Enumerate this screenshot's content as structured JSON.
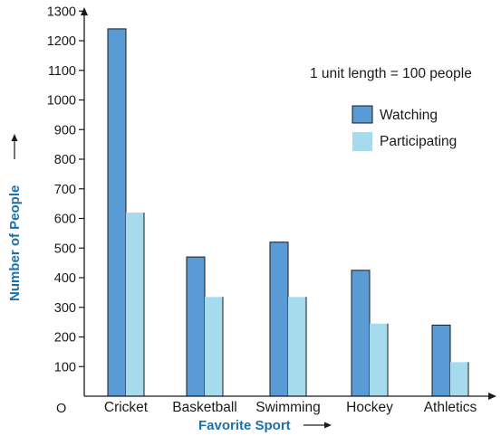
{
  "chart_data": {
    "type": "bar",
    "title": "",
    "xlabel": "Favorite Sport",
    "ylabel": "Number of People",
    "note": "1 unit length = 100 people",
    "origin_label": "O",
    "categories": [
      "Cricket",
      "Basketball",
      "Swimming",
      "Hockey",
      "Athletics"
    ],
    "series": [
      {
        "name": "Watching",
        "values": [
          1240,
          470,
          520,
          425,
          240
        ],
        "color": "#5b9bd5"
      },
      {
        "name": "Participating",
        "values": [
          620,
          335,
          335,
          245,
          115
        ],
        "color": "#a6dbee"
      }
    ],
    "yticks": [
      100,
      200,
      300,
      400,
      500,
      600,
      700,
      800,
      900,
      1000,
      1100,
      1200,
      1300
    ],
    "ylim": [
      0,
      1300
    ],
    "grid": false,
    "legend_position": "top-right",
    "colors": {
      "axis": "#1a1a1a",
      "title": "#1f6fa8",
      "bar_outline": "#1a1a1a"
    }
  }
}
